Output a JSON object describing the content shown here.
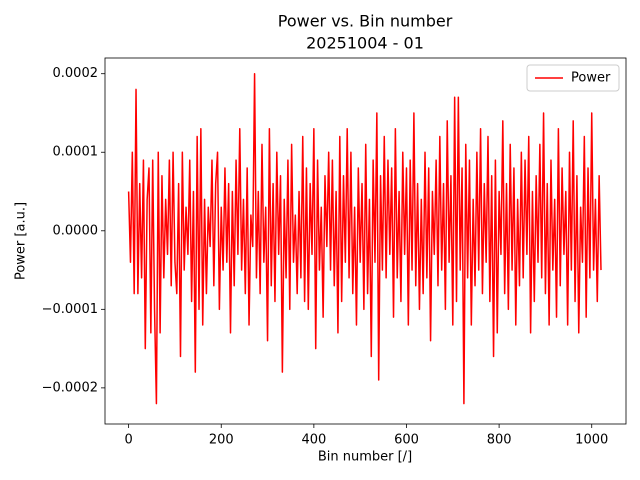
{
  "chart_data": {
    "type": "line",
    "title": "Power vs. Bin number",
    "subtitle": "20251004 - 01",
    "xlabel": "Bin number [/]",
    "ylabel": "Power [a.u.]",
    "xlim": [
      -51,
      1074
    ],
    "ylim": [
      -0.000246,
      0.00022
    ],
    "xticks": [
      0,
      200,
      400,
      600,
      800,
      1000
    ],
    "yticks": [
      {
        "value": -0.0002,
        "label": "−0.0002"
      },
      {
        "value": -0.0001,
        "label": "−0.0001"
      },
      {
        "value": 0,
        "label": "0.0000"
      },
      0.0001,
      0.0002
    ],
    "legend": "upper right",
    "x": [
      0,
      4,
      8,
      12,
      16,
      20,
      24,
      28,
      32,
      36,
      40,
      44,
      48,
      52,
      56,
      60,
      64,
      68,
      72,
      76,
      80,
      84,
      88,
      92,
      96,
      100,
      104,
      108,
      112,
      116,
      120,
      124,
      128,
      132,
      136,
      140,
      144,
      148,
      152,
      156,
      160,
      164,
      168,
      172,
      176,
      180,
      184,
      188,
      192,
      196,
      200,
      204,
      208,
      212,
      216,
      220,
      224,
      228,
      232,
      236,
      240,
      244,
      248,
      252,
      256,
      260,
      264,
      268,
      272,
      276,
      280,
      284,
      288,
      292,
      296,
      300,
      304,
      308,
      312,
      316,
      320,
      324,
      328,
      332,
      336,
      340,
      344,
      348,
      352,
      356,
      360,
      364,
      368,
      372,
      376,
      380,
      384,
      388,
      392,
      396,
      400,
      404,
      408,
      412,
      416,
      420,
      424,
      428,
      432,
      436,
      440,
      444,
      448,
      452,
      456,
      460,
      464,
      468,
      472,
      476,
      480,
      484,
      488,
      492,
      496,
      500,
      504,
      508,
      512,
      516,
      520,
      524,
      528,
      532,
      536,
      540,
      544,
      548,
      552,
      556,
      560,
      564,
      568,
      572,
      576,
      580,
      584,
      588,
      592,
      596,
      600,
      604,
      608,
      612,
      616,
      620,
      624,
      628,
      632,
      636,
      640,
      644,
      648,
      652,
      656,
      660,
      664,
      668,
      672,
      676,
      680,
      684,
      688,
      692,
      696,
      700,
      704,
      708,
      712,
      716,
      720,
      724,
      728,
      732,
      736,
      740,
      744,
      748,
      752,
      756,
      760,
      764,
      768,
      772,
      776,
      780,
      784,
      788,
      792,
      796,
      800,
      804,
      808,
      812,
      816,
      820,
      824,
      828,
      832,
      836,
      840,
      844,
      848,
      852,
      856,
      860,
      864,
      868,
      872,
      876,
      880,
      884,
      888,
      892,
      896,
      900,
      904,
      908,
      912,
      916,
      920,
      924,
      928,
      932,
      936,
      940,
      944,
      948,
      952,
      956,
      960,
      964,
      968,
      972,
      976,
      980,
      984,
      988,
      992,
      996,
      1000,
      1004,
      1008,
      1012,
      1016,
      1020
    ],
    "series": [
      {
        "name": "Power",
        "color": "red",
        "values": [
          5e-05,
          -4e-05,
          0.0001,
          -8e-05,
          0.00018,
          -8e-05,
          6e-05,
          -6e-05,
          9e-05,
          -0.00015,
          4e-05,
          8e-05,
          -0.00013,
          9e-05,
          -0.0001,
          -0.00022,
          0.0001,
          -0.00013,
          7e-05,
          -6e-05,
          4e-05,
          -3e-05,
          9e-05,
          -7e-05,
          0.0001,
          -4e-05,
          -8e-05,
          6e-05,
          -0.00016,
          0.0001,
          -5e-05,
          3e-05,
          -3e-05,
          9e-05,
          -9e-05,
          5e-05,
          -0.00018,
          0.00012,
          -0.0001,
          0.00013,
          -0.00012,
          4e-05,
          -8e-05,
          3e-05,
          -2e-05,
          9e-05,
          -7e-05,
          6e-05,
          0.0001,
          -0.0001,
          3e-05,
          -5e-05,
          8e-05,
          -4e-05,
          6e-05,
          -0.00013,
          5e-05,
          -7e-05,
          9e-05,
          -3e-05,
          0.00013,
          -5e-05,
          4e-05,
          -8e-05,
          8e-05,
          -0.00012,
          2e-05,
          -2e-05,
          0.0002,
          -6e-05,
          5e-05,
          -8e-05,
          0.00011,
          -4e-05,
          3e-05,
          -0.00014,
          0.00013,
          -7e-05,
          6e-05,
          -9e-05,
          0.0001,
          -3e-05,
          7e-05,
          -0.00018,
          4e-05,
          -6e-05,
          9e-05,
          -0.0001,
          0.00011,
          -4e-05,
          2e-05,
          -8e-05,
          5e-05,
          -6e-05,
          0.00012,
          -9e-05,
          8e-05,
          -0.0001,
          6e-05,
          -3e-05,
          0.00013,
          -0.00015,
          9e-05,
          -5e-05,
          3e-05,
          -0.00011,
          7e-05,
          -2e-05,
          0.0001,
          -5e-05,
          9e-05,
          -7e-05,
          5e-05,
          -0.00013,
          0.00012,
          -9e-05,
          7e-05,
          -4e-05,
          0.00013,
          -6e-05,
          0.0001,
          -8e-05,
          3e-05,
          -0.00012,
          8e-05,
          -4e-05,
          6e-05,
          -0.0001,
          0.00011,
          -8e-05,
          4e-05,
          -0.00016,
          9e-05,
          -4e-05,
          0.00015,
          -0.00019,
          7e-05,
          -5e-05,
          0.00012,
          -6e-05,
          9e-05,
          -3e-05,
          8e-05,
          -0.00011,
          0.00013,
          -6e-05,
          5e-05,
          -9e-05,
          0.0001,
          -3e-05,
          8e-05,
          -0.00012,
          9e-05,
          -5e-05,
          0.00015,
          -7e-05,
          6e-05,
          -0.0001,
          4e-05,
          -8e-05,
          0.0001,
          -6e-05,
          8e-05,
          -0.00014,
          5e-05,
          -3e-05,
          9e-05,
          -7e-05,
          0.00012,
          -5e-05,
          6e-05,
          -0.0001,
          0.00014,
          -4e-05,
          7e-05,
          -0.00012,
          0.00017,
          -9e-05,
          0.00017,
          -5e-05,
          8e-05,
          -0.00022,
          0.00011,
          -6e-05,
          9e-05,
          -0.00012,
          4e-05,
          -7e-05,
          0.0001,
          -5e-05,
          0.00013,
          -8e-05,
          6e-05,
          -4e-05,
          0.00012,
          -9e-05,
          7e-05,
          -0.00016,
          9e-05,
          -0.00013,
          5e-05,
          -3e-05,
          0.00014,
          -8e-05,
          6e-05,
          -0.0001,
          0.00011,
          -5e-05,
          8e-05,
          -0.00012,
          4e-05,
          -7e-05,
          0.0001,
          -6e-05,
          9e-05,
          -3e-05,
          0.00012,
          -0.00013,
          5e-05,
          -9e-05,
          7e-05,
          -4e-05,
          0.00011,
          -6e-05,
          0.00015,
          -8e-05,
          6e-05,
          -0.00012,
          9e-05,
          -5e-05,
          4e-05,
          -0.00011,
          0.00013,
          -7e-05,
          8e-05,
          -3e-05,
          5e-05,
          -0.00012,
          0.0001,
          -5e-05,
          0.00014,
          -9e-05,
          7e-05,
          -0.00013,
          3e-05,
          -4e-05,
          0.00012,
          -0.00011,
          8e-05,
          -6e-05,
          0.00015,
          -5e-05,
          4e-05,
          -9e-05,
          7e-05,
          -5e-05
        ]
      }
    ]
  }
}
